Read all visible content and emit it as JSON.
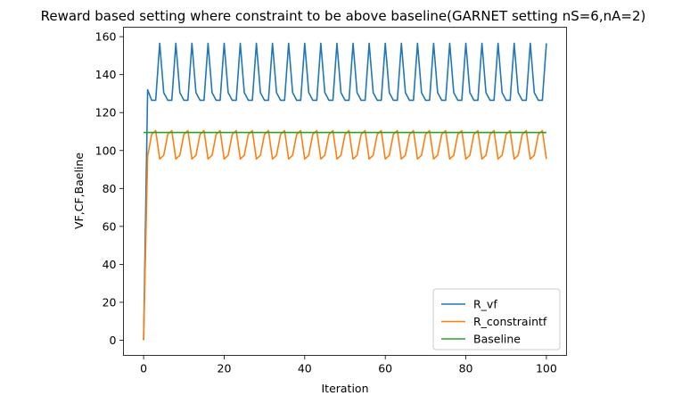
{
  "chart_data": {
    "type": "line",
    "title": "Reward based setting where constraint to be above baseline(GARNET setting nS=6,nA=2)",
    "xlabel": "Iteration",
    "ylabel": "VF,CF,Baeline",
    "xlim": [
      -5,
      105
    ],
    "ylim": [
      -8,
      165
    ],
    "xticks": [
      0,
      20,
      40,
      60,
      80,
      100
    ],
    "yticks": [
      0,
      20,
      40,
      60,
      80,
      100,
      120,
      140,
      160
    ],
    "grid": false,
    "legend_position": "lower-right",
    "series": [
      {
        "name": "R_vf",
        "color": "#1f77b4",
        "x": [
          0,
          1,
          2,
          3,
          4,
          5,
          6,
          7,
          8,
          9,
          10,
          11,
          12,
          13,
          14,
          15,
          16,
          17,
          18,
          19,
          20,
          21,
          22,
          23,
          24,
          25,
          26,
          27,
          28,
          29,
          30,
          31,
          32,
          33,
          34,
          35,
          36,
          37,
          38,
          39,
          40,
          41,
          42,
          43,
          44,
          45,
          46,
          47,
          48,
          49,
          50,
          51,
          52,
          53,
          54,
          55,
          56,
          57,
          58,
          59,
          60,
          61,
          62,
          63,
          64,
          65,
          66,
          67,
          68,
          69,
          70,
          71,
          72,
          73,
          74,
          75,
          76,
          77,
          78,
          79,
          80,
          81,
          82,
          83,
          84,
          85,
          86,
          87,
          88,
          89,
          90,
          91,
          92,
          93,
          94,
          95,
          96,
          97,
          98,
          99,
          100
        ],
        "y": [
          0,
          132,
          126.5,
          126.5,
          156.5,
          130.5,
          126.5,
          126.5,
          156.5,
          130.5,
          126.5,
          126.5,
          156.5,
          130.5,
          126.5,
          126.5,
          156.5,
          130.5,
          126.5,
          126.5,
          156.5,
          130.5,
          126.5,
          126.5,
          156.5,
          130.5,
          126.5,
          126.5,
          156.5,
          130.5,
          126.5,
          126.5,
          156.5,
          130.5,
          126.5,
          126.5,
          156.5,
          130.5,
          126.5,
          126.5,
          156.5,
          130.5,
          126.5,
          126.5,
          156.5,
          130.5,
          126.5,
          126.5,
          156.5,
          130.5,
          126.5,
          126.5,
          156.5,
          130.5,
          126.5,
          126.5,
          156.5,
          130.5,
          126.5,
          126.5,
          156.5,
          130.5,
          126.5,
          126.5,
          156.5,
          130.5,
          126.5,
          126.5,
          156.5,
          130.5,
          126.5,
          126.5,
          156.5,
          130.5,
          126.5,
          126.5,
          156.5,
          130.5,
          126.5,
          126.5,
          156.5,
          130.5,
          126.5,
          126.5,
          156.5,
          130.5,
          126.5,
          126.5,
          156.5,
          130.5,
          126.5,
          126.5,
          156.5,
          130.5,
          126.5,
          126.5,
          156.5,
          130.5,
          126.5,
          126.5,
          156.5
        ]
      },
      {
        "name": "R_constraintf",
        "color": "#ff7f0e",
        "x": [
          0,
          1,
          2,
          3,
          4,
          5,
          6,
          7,
          8,
          9,
          10,
          11,
          12,
          13,
          14,
          15,
          16,
          17,
          18,
          19,
          20,
          21,
          22,
          23,
          24,
          25,
          26,
          27,
          28,
          29,
          30,
          31,
          32,
          33,
          34,
          35,
          36,
          37,
          38,
          39,
          40,
          41,
          42,
          43,
          44,
          45,
          46,
          47,
          48,
          49,
          50,
          51,
          52,
          53,
          54,
          55,
          56,
          57,
          58,
          59,
          60,
          61,
          62,
          63,
          64,
          65,
          66,
          67,
          68,
          69,
          70,
          71,
          72,
          73,
          74,
          75,
          76,
          77,
          78,
          79,
          80,
          81,
          82,
          83,
          84,
          85,
          86,
          87,
          88,
          89,
          90,
          91,
          92,
          93,
          94,
          95,
          96,
          97,
          98,
          99,
          100
        ],
        "y": [
          0,
          97,
          108.5,
          110.5,
          95.5,
          97.5,
          108.5,
          110.5,
          95.5,
          97.5,
          108.5,
          110.5,
          95.5,
          97.5,
          108.5,
          110.5,
          95.5,
          97.5,
          108.5,
          110.5,
          95.5,
          97.5,
          108.5,
          110.5,
          95.5,
          97.5,
          108.5,
          110.5,
          95.5,
          97.5,
          108.5,
          110.5,
          95.5,
          97.5,
          108.5,
          110.5,
          95.5,
          97.5,
          108.5,
          110.5,
          95.5,
          97.5,
          108.5,
          110.5,
          95.5,
          97.5,
          108.5,
          110.5,
          95.5,
          97.5,
          108.5,
          110.5,
          95.5,
          97.5,
          108.5,
          110.5,
          95.5,
          97.5,
          108.5,
          110.5,
          95.5,
          97.5,
          108.5,
          110.5,
          95.5,
          97.5,
          108.5,
          110.5,
          95.5,
          97.5,
          108.5,
          110.5,
          95.5,
          97.5,
          108.5,
          110.5,
          95.5,
          97.5,
          108.5,
          110.5,
          95.5,
          97.5,
          108.5,
          110.5,
          95.5,
          97.5,
          108.5,
          110.5,
          95.5,
          97.5,
          108.5,
          110.5,
          95.5,
          97.5,
          108.5,
          110.5,
          95.5,
          97.5,
          108.5,
          110.5,
          95.5
        ]
      },
      {
        "name": "Baseline",
        "color": "#2ca02c",
        "x": [
          0,
          100
        ],
        "y": [
          109.5,
          109.5
        ]
      }
    ]
  }
}
